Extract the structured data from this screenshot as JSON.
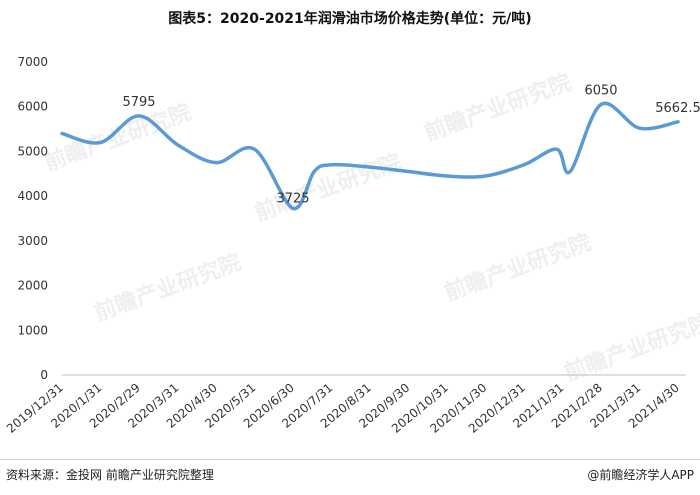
{
  "header": {
    "title": "图表5：2020-2021年润滑油市场价格走势(单位：元/吨)"
  },
  "footer": {
    "source": "资料来源：金投网 前瞻产业研究院整理",
    "brand": "@前瞻经济学人APP"
  },
  "watermarks": [
    "前瞻产业研究院",
    "前瞻产业研究院",
    "前瞻产业研究院",
    "前瞻产业研究院",
    "前瞻产业研究院",
    "前瞻产业研究院"
  ],
  "chart_data": {
    "type": "line",
    "title": "图表5：2020-2021年润滑油市场价格走势(单位：元/吨)",
    "xlabel": "",
    "ylabel": "",
    "ylim": [
      0,
      7000
    ],
    "yticks": [
      0,
      1000,
      2000,
      3000,
      4000,
      5000,
      6000,
      7000
    ],
    "categories": [
      "2019/12/31",
      "2020/1/31",
      "2020/2/29",
      "2020/3/31",
      "2020/4/30",
      "2020/5/31",
      "2020/6/30",
      "2020/7/31",
      "2020/8/31",
      "2020/9/30",
      "2020/10/31",
      "2020/11/30",
      "2020/12/31",
      "2021/1/31",
      "2021/2/28",
      "2021/3/31",
      "2021/4/30"
    ],
    "series": [
      {
        "color": "#5b9bd5",
        "points": [
          {
            "x": 0.0,
            "y": 5400
          },
          {
            "x": 1.0,
            "y": 5200
          },
          {
            "x": 2.0,
            "y": 5795
          },
          {
            "x": 3.0,
            "y": 5150
          },
          {
            "x": 4.0,
            "y": 4750
          },
          {
            "x": 5.0,
            "y": 5050
          },
          {
            "x": 6.0,
            "y": 3725
          },
          {
            "x": 6.55,
            "y": 4550
          },
          {
            "x": 7.0,
            "y": 4700
          },
          {
            "x": 8.0,
            "y": 4650
          },
          {
            "x": 9.0,
            "y": 4550
          },
          {
            "x": 10.0,
            "y": 4450
          },
          {
            "x": 11.0,
            "y": 4450
          },
          {
            "x": 12.0,
            "y": 4700
          },
          {
            "x": 12.85,
            "y": 5050
          },
          {
            "x": 13.2,
            "y": 4550
          },
          {
            "x": 14.0,
            "y": 6050
          },
          {
            "x": 15.0,
            "y": 5520
          },
          {
            "x": 16.0,
            "y": 5662.5
          }
        ]
      }
    ],
    "data_labels": [
      {
        "x": 2.0,
        "y": 5795,
        "text": "5795"
      },
      {
        "x": 6.0,
        "y": 3725,
        "text": "3725"
      },
      {
        "x": 14.0,
        "y": 6050,
        "text": "6050"
      },
      {
        "x": 16.0,
        "y": 5662.5,
        "text": "5662.5"
      }
    ],
    "grid": false,
    "legend": "none"
  }
}
